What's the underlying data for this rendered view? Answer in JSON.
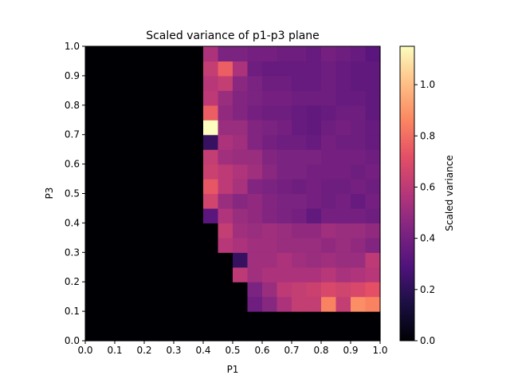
{
  "chart_data": {
    "type": "heatmap",
    "title": "Scaled variance of p1-p3 plane",
    "xlabel": "P1",
    "ylabel": "P3",
    "xlim": [
      0,
      1
    ],
    "ylim": [
      0,
      1
    ],
    "x_ticks": [
      "0.0",
      "0.1",
      "0.2",
      "0.3",
      "0.4",
      "0.5",
      "0.6",
      "0.7",
      "0.8",
      "0.9",
      "1.0"
    ],
    "y_ticks": [
      "0.0",
      "0.1",
      "0.2",
      "0.3",
      "0.4",
      "0.5",
      "0.6",
      "0.7",
      "0.8",
      "0.9",
      "1.0"
    ],
    "colorbar": {
      "label": "Scaled variance",
      "colormap": "magma",
      "range": [
        0,
        1.15
      ],
      "ticks": [
        "0.0",
        "0.2",
        "0.4",
        "0.6",
        "0.8",
        "1.0"
      ]
    },
    "grid": false,
    "grid_size": 20,
    "values": [
      [
        0,
        0,
        0,
        0,
        0,
        0,
        0,
        0,
        0,
        0,
        0,
        0,
        0,
        0,
        0,
        0,
        0,
        0,
        0,
        0
      ],
      [
        0,
        0,
        0,
        0,
        0,
        0,
        0,
        0,
        0,
        0,
        0,
        0,
        0,
        0,
        0,
        0,
        0,
        0,
        0,
        0
      ],
      [
        0,
        0,
        0,
        0,
        0,
        0,
        0,
        0,
        0,
        0,
        0,
        0.38,
        0.45,
        0.55,
        0.62,
        0.62,
        0.85,
        0.62,
        0.88,
        0.85
      ],
      [
        0,
        0,
        0,
        0,
        0,
        0,
        0,
        0,
        0,
        0,
        0,
        0.42,
        0.5,
        0.6,
        0.62,
        0.64,
        0.68,
        0.66,
        0.68,
        0.72
      ],
      [
        0,
        0,
        0,
        0,
        0,
        0,
        0,
        0,
        0,
        0,
        0.6,
        0.52,
        0.55,
        0.55,
        0.55,
        0.55,
        0.58,
        0.54,
        0.56,
        0.58
      ],
      [
        0,
        0,
        0,
        0,
        0,
        0,
        0,
        0,
        0,
        0,
        0.22,
        0.52,
        0.52,
        0.55,
        0.52,
        0.5,
        0.52,
        0.5,
        0.5,
        0.6
      ],
      [
        0,
        0,
        0,
        0,
        0,
        0,
        0,
        0,
        0,
        0.58,
        0.55,
        0.52,
        0.52,
        0.5,
        0.5,
        0.5,
        0.48,
        0.5,
        0.48,
        0.44
      ],
      [
        0,
        0,
        0,
        0,
        0,
        0,
        0,
        0,
        0,
        0.62,
        0.52,
        0.5,
        0.52,
        0.5,
        0.48,
        0.48,
        0.52,
        0.5,
        0.5,
        0.48
      ],
      [
        0,
        0,
        0,
        0,
        0,
        0,
        0,
        0,
        0.32,
        0.56,
        0.5,
        0.48,
        0.44,
        0.42,
        0.4,
        0.34,
        0.4,
        0.4,
        0.4,
        0.38
      ],
      [
        0,
        0,
        0,
        0,
        0,
        0,
        0,
        0,
        0.66,
        0.5,
        0.45,
        0.48,
        0.44,
        0.42,
        0.42,
        0.4,
        0.38,
        0.4,
        0.36,
        0.4
      ],
      [
        0,
        0,
        0,
        0,
        0,
        0,
        0,
        0,
        0.74,
        0.6,
        0.54,
        0.44,
        0.42,
        0.4,
        0.38,
        0.4,
        0.38,
        0.38,
        0.4,
        0.38
      ],
      [
        0,
        0,
        0,
        0,
        0,
        0,
        0,
        0,
        0.64,
        0.6,
        0.56,
        0.52,
        0.46,
        0.42,
        0.42,
        0.4,
        0.4,
        0.4,
        0.38,
        0.4
      ],
      [
        0,
        0,
        0,
        0,
        0,
        0,
        0,
        0,
        0.62,
        0.52,
        0.5,
        0.5,
        0.44,
        0.42,
        0.42,
        0.42,
        0.4,
        0.4,
        0.4,
        0.38
      ],
      [
        0,
        0,
        0,
        0,
        0,
        0,
        0,
        0,
        0.22,
        0.55,
        0.52,
        0.44,
        0.4,
        0.38,
        0.38,
        0.36,
        0.4,
        0.38,
        0.38,
        0.36
      ],
      [
        0,
        0,
        0,
        0,
        0,
        0,
        0,
        0,
        1.15,
        0.5,
        0.5,
        0.44,
        0.42,
        0.4,
        0.36,
        0.34,
        0.38,
        0.4,
        0.38,
        0.36
      ],
      [
        0,
        0,
        0,
        0,
        0,
        0,
        0,
        0,
        0.76,
        0.48,
        0.44,
        0.4,
        0.38,
        0.38,
        0.36,
        0.34,
        0.36,
        0.38,
        0.38,
        0.34
      ],
      [
        0,
        0,
        0,
        0,
        0,
        0,
        0,
        0,
        0.6,
        0.5,
        0.44,
        0.42,
        0.4,
        0.4,
        0.38,
        0.38,
        0.38,
        0.36,
        0.36,
        0.34
      ],
      [
        0,
        0,
        0,
        0,
        0,
        0,
        0,
        0,
        0.58,
        0.62,
        0.46,
        0.42,
        0.38,
        0.38,
        0.36,
        0.36,
        0.38,
        0.36,
        0.34,
        0.34
      ],
      [
        0,
        0,
        0,
        0,
        0,
        0,
        0,
        0,
        0.62,
        0.76,
        0.55,
        0.38,
        0.36,
        0.36,
        0.36,
        0.36,
        0.38,
        0.36,
        0.34,
        0.34
      ],
      [
        0,
        0,
        0,
        0,
        0,
        0,
        0,
        0,
        0.55,
        0.42,
        0.42,
        0.4,
        0.4,
        0.38,
        0.38,
        0.36,
        0.4,
        0.38,
        0.36,
        0.32
      ]
    ]
  }
}
